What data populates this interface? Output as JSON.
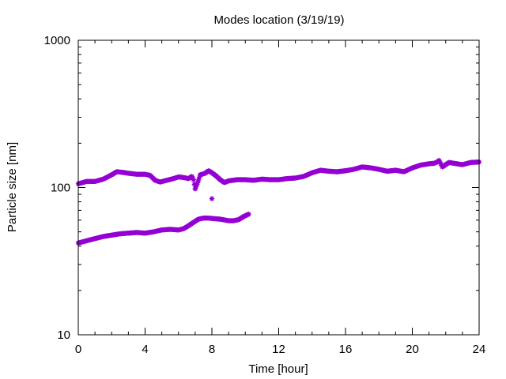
{
  "chart_data": {
    "type": "scatter",
    "title": "Modes location (3/19/19)",
    "xlabel": "Time [hour]",
    "ylabel": "Particle size [nm]",
    "xlim": [
      0,
      24
    ],
    "ylim": [
      10,
      1000
    ],
    "yscale": "log",
    "xticks": [
      0,
      4,
      8,
      12,
      16,
      20,
      24
    ],
    "xtick_labels": [
      "0",
      "4",
      "8",
      "12",
      "16",
      "20",
      "24"
    ],
    "yticks": [
      10,
      100,
      1000
    ],
    "ytick_labels": [
      "10",
      "100",
      "1000"
    ],
    "grid": false,
    "legend": "none",
    "marker_color": "#9400d3",
    "series": [
      {
        "x": [
          0.0,
          0.5,
          1.0,
          1.5,
          2.0,
          2.3,
          2.6,
          3.0,
          3.5,
          4.0,
          4.3,
          4.6,
          4.9,
          5.3,
          5.7,
          6.0,
          6.3,
          6.6,
          6.8,
          6.9,
          7.0,
          7.15,
          7.3,
          7.6,
          7.8,
          8.0,
          8.25,
          8.5,
          8.75,
          9.0,
          9.5,
          10.0,
          10.5,
          11.0,
          11.5,
          12.0,
          12.5,
          13.0,
          13.5,
          14.0,
          14.5,
          15.0,
          15.5,
          16.0,
          16.5,
          17.0,
          17.5,
          18.0,
          18.5,
          19.0,
          19.5,
          20.0,
          20.5,
          21.0,
          21.3,
          21.5,
          21.6,
          21.8,
          22.0,
          22.2,
          22.5,
          23.0,
          23.5,
          24.0
        ],
        "y": [
          106,
          110,
          110,
          114,
          122,
          128,
          127,
          125,
          123,
          123,
          121,
          112,
          109,
          112,
          115,
          118,
          117,
          115,
          119,
          113,
          98,
          108,
          122,
          125,
          130,
          126,
          120,
          113,
          108,
          111,
          113,
          113,
          112,
          114,
          113,
          113,
          115,
          116,
          119,
          126,
          131,
          129,
          128,
          130,
          133,
          138,
          136,
          133,
          129,
          131,
          128,
          136,
          142,
          145,
          146,
          149,
          153,
          138,
          143,
          148,
          146,
          143,
          148,
          149
        ]
      },
      {
        "x": [
          7.0,
          8.0
        ],
        "y": [
          98,
          84
        ]
      },
      {
        "x": [
          0.0,
          0.5,
          1.0,
          1.5,
          2.0,
          2.5,
          3.0,
          3.5,
          4.0,
          4.5,
          5.0,
          5.5,
          6.0,
          6.3,
          6.6,
          6.9,
          7.2,
          7.5,
          7.8,
          8.1,
          8.5,
          9.0,
          9.3,
          9.6,
          9.9,
          10.2
        ],
        "y": [
          42,
          43.5,
          45,
          46.5,
          47.5,
          48.5,
          49,
          49.5,
          49,
          50,
          51.5,
          52,
          51.5,
          52.5,
          55,
          58,
          61,
          62,
          62,
          61.5,
          61,
          59.5,
          59.5,
          60.5,
          63.5,
          66
        ]
      }
    ]
  }
}
